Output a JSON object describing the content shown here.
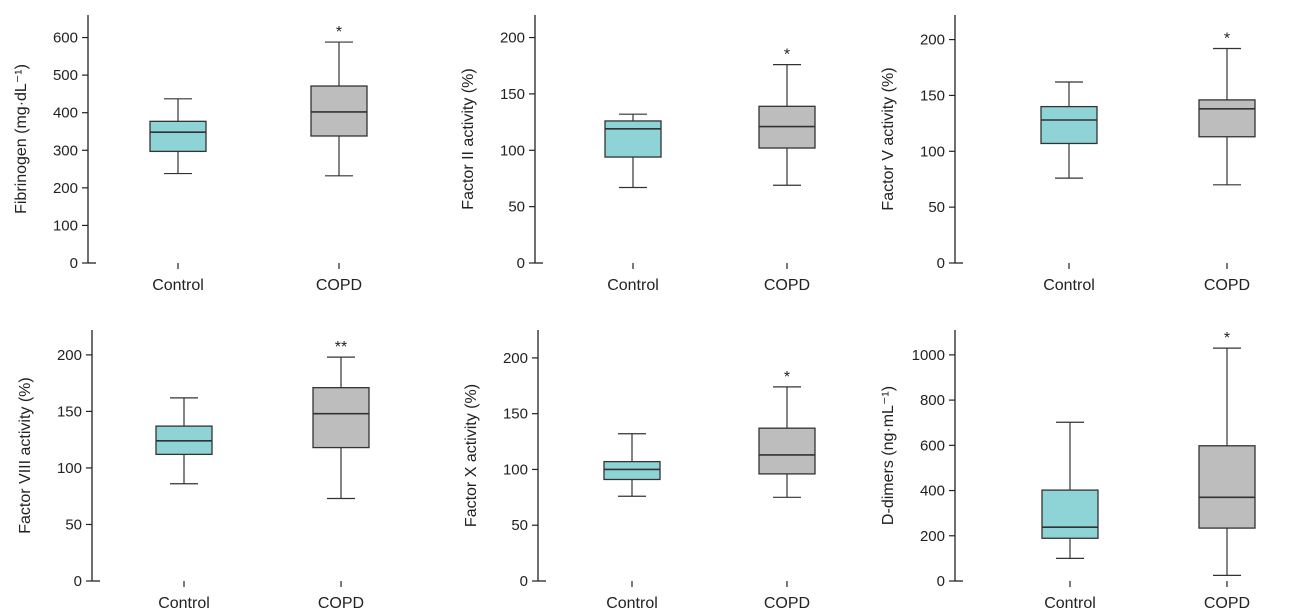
{
  "colors": {
    "control": "#8ed3d6",
    "copd": "#bdbdbd",
    "stroke": "#333333"
  },
  "chart_data": [
    {
      "type": "box",
      "ylabel": "Fibrinogen (mg·dL⁻¹)",
      "ylim": [
        0,
        660
      ],
      "yticks": [
        0,
        100,
        200,
        300,
        400,
        500,
        600
      ],
      "categories": [
        "Control",
        "COPD"
      ],
      "boxes": [
        {
          "category": "Control",
          "min": 238,
          "q1": 297,
          "median": 348,
          "q3": 377,
          "max": 437,
          "significance": ""
        },
        {
          "category": "COPD",
          "min": 232,
          "q1": 338,
          "median": 402,
          "q3": 471,
          "max": 588,
          "significance": "*"
        }
      ]
    },
    {
      "type": "box",
      "ylabel": "Factor II activity (%)",
      "ylim": [
        0,
        220
      ],
      "yticks": [
        0,
        50,
        100,
        150,
        200
      ],
      "categories": [
        "Control",
        "COPD"
      ],
      "boxes": [
        {
          "category": "Control",
          "min": 67,
          "q1": 94,
          "median": 119,
          "q3": 126,
          "max": 132,
          "significance": ""
        },
        {
          "category": "COPD",
          "min": 69,
          "q1": 102,
          "median": 121,
          "q3": 139,
          "max": 176,
          "significance": "*"
        }
      ]
    },
    {
      "type": "box",
      "ylabel": "Factor V activity (%)",
      "ylim": [
        0,
        222
      ],
      "yticks": [
        0,
        50,
        100,
        150,
        200
      ],
      "categories": [
        "Control",
        "COPD"
      ],
      "boxes": [
        {
          "category": "Control",
          "min": 76,
          "q1": 107,
          "median": 128,
          "q3": 140,
          "max": 162,
          "significance": ""
        },
        {
          "category": "COPD",
          "min": 70,
          "q1": 113,
          "median": 138,
          "q3": 146,
          "max": 192,
          "significance": "*"
        }
      ]
    },
    {
      "type": "box",
      "ylabel": "Factor VIII activity (%)",
      "ylim": [
        0,
        222
      ],
      "yticks": [
        0,
        50,
        100,
        150,
        200
      ],
      "categories": [
        "Control",
        "COPD"
      ],
      "boxes": [
        {
          "category": "Control",
          "min": 86,
          "q1": 112,
          "median": 124,
          "q3": 137,
          "max": 162,
          "significance": ""
        },
        {
          "category": "COPD",
          "min": 73,
          "q1": 118,
          "median": 148,
          "q3": 171,
          "max": 198,
          "significance": "**"
        }
      ]
    },
    {
      "type": "box",
      "ylabel": "Factor X activity (%)",
      "ylim": [
        0,
        225
      ],
      "yticks": [
        0,
        50,
        100,
        150,
        200
      ],
      "categories": [
        "Control",
        "COPD"
      ],
      "boxes": [
        {
          "category": "Control",
          "min": 76,
          "q1": 91,
          "median": 100,
          "q3": 107,
          "max": 132,
          "significance": ""
        },
        {
          "category": "COPD",
          "min": 75,
          "q1": 96,
          "median": 113,
          "q3": 137,
          "max": 174,
          "significance": "*"
        }
      ]
    },
    {
      "type": "box",
      "ylabel": "D-dimers (ng·mL⁻¹)",
      "ylim": [
        0,
        1110
      ],
      "yticks": [
        0,
        200,
        400,
        600,
        800,
        1000
      ],
      "categories": [
        "Control",
        "COPD"
      ],
      "boxes": [
        {
          "category": "Control",
          "min": 100,
          "q1": 189,
          "median": 238,
          "q3": 402,
          "max": 702,
          "significance": ""
        },
        {
          "category": "COPD",
          "min": 25,
          "q1": 234,
          "median": 370,
          "q3": 598,
          "max": 1030,
          "significance": "*"
        }
      ]
    }
  ]
}
